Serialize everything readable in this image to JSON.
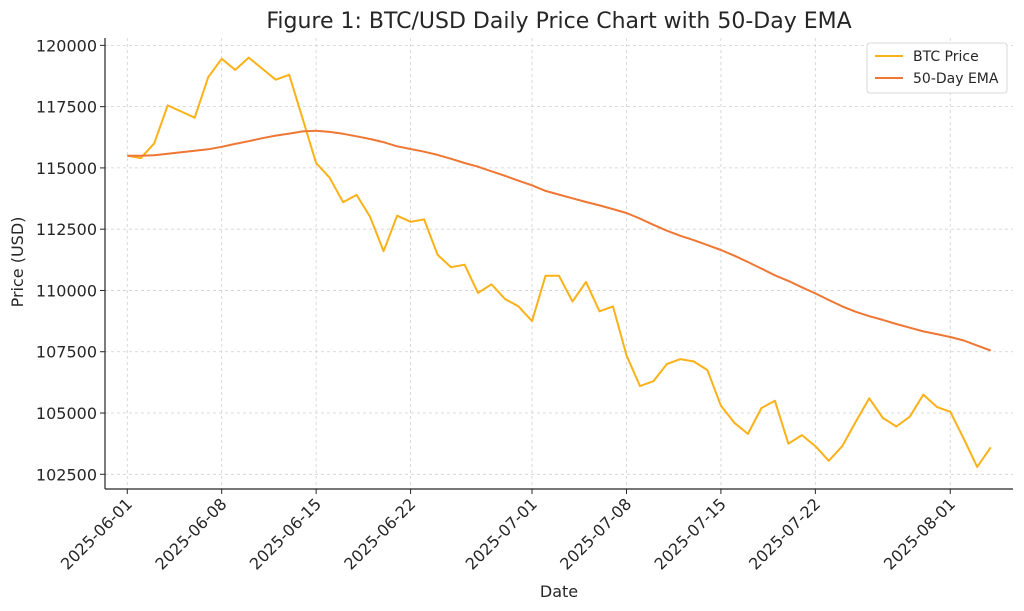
{
  "chart_data": {
    "type": "line",
    "title": "Figure 1: BTC/USD Daily Price Chart with 50-Day EMA",
    "xlabel": "Date",
    "ylabel": "Price (USD)",
    "xlim": [
      "2025-06-01",
      "2025-08-04"
    ],
    "ylim": [
      101900,
      120300
    ],
    "x_ticks": [
      "2025-06-01",
      "2025-06-08",
      "2025-06-15",
      "2025-06-22",
      "2025-07-01",
      "2025-07-08",
      "2025-07-15",
      "2025-07-22",
      "2025-08-01"
    ],
    "y_ticks": [
      102500,
      105000,
      107500,
      110000,
      112500,
      115000,
      117500,
      120000
    ],
    "grid": true,
    "legend_position": "top-right",
    "x": [
      "2025-06-01",
      "2025-06-02",
      "2025-06-03",
      "2025-06-04",
      "2025-06-05",
      "2025-06-06",
      "2025-06-07",
      "2025-06-08",
      "2025-06-09",
      "2025-06-10",
      "2025-06-11",
      "2025-06-12",
      "2025-06-13",
      "2025-06-14",
      "2025-06-15",
      "2025-06-16",
      "2025-06-17",
      "2025-06-18",
      "2025-06-19",
      "2025-06-20",
      "2025-06-21",
      "2025-06-22",
      "2025-06-23",
      "2025-06-24",
      "2025-06-25",
      "2025-06-26",
      "2025-06-27",
      "2025-06-28",
      "2025-06-29",
      "2025-06-30",
      "2025-07-01",
      "2025-07-02",
      "2025-07-03",
      "2025-07-04",
      "2025-07-05",
      "2025-07-06",
      "2025-07-07",
      "2025-07-08",
      "2025-07-09",
      "2025-07-10",
      "2025-07-11",
      "2025-07-12",
      "2025-07-13",
      "2025-07-14",
      "2025-07-15",
      "2025-07-16",
      "2025-07-17",
      "2025-07-18",
      "2025-07-19",
      "2025-07-20",
      "2025-07-21",
      "2025-07-22",
      "2025-07-23",
      "2025-07-24",
      "2025-07-25",
      "2025-07-26",
      "2025-07-27",
      "2025-07-28",
      "2025-07-29",
      "2025-07-30",
      "2025-07-31",
      "2025-08-01",
      "2025-08-02",
      "2025-08-03",
      "2025-08-04"
    ],
    "series": [
      {
        "name": "BTC Price",
        "color": "#FBB117",
        "values": [
          115500,
          115400,
          116000,
          117550,
          117300,
          117050,
          118700,
          119450,
          119000,
          119500,
          119050,
          118600,
          118800,
          117000,
          115200,
          114600,
          113600,
          113900,
          113000,
          111600,
          113050,
          112800,
          112900,
          111450,
          110950,
          111050,
          109900,
          110250,
          109650,
          109350,
          108750,
          110600,
          110600,
          109550,
          110350,
          109150,
          109350,
          107350,
          106100,
          106300,
          107000,
          107200,
          107100,
          106750,
          105300,
          104600,
          104150,
          105200,
          105500,
          103750,
          104100,
          103650,
          103050,
          103650,
          104650,
          105600,
          104800,
          104450,
          104850,
          105750,
          105250,
          105050,
          103950,
          102800,
          103600
        ]
      },
      {
        "name": "50-Day EMA",
        "color": "#EE7733",
        "values": [
          115500,
          115500,
          115520,
          115580,
          115640,
          115700,
          115760,
          115860,
          115980,
          116090,
          116210,
          116320,
          116400,
          116490,
          116520,
          116470,
          116390,
          116290,
          116180,
          116050,
          115880,
          115770,
          115660,
          115530,
          115370,
          115200,
          115050,
          114860,
          114680,
          114480,
          114290,
          114060,
          113910,
          113760,
          113610,
          113470,
          113320,
          113160,
          112930,
          112680,
          112440,
          112230,
          112050,
          111850,
          111650,
          111420,
          111160,
          110890,
          110620,
          110390,
          110130,
          109880,
          109610,
          109350,
          109130,
          108950,
          108800,
          108630,
          108480,
          108330,
          108220,
          108100,
          107960,
          107750,
          107550
        ]
      }
    ]
  }
}
